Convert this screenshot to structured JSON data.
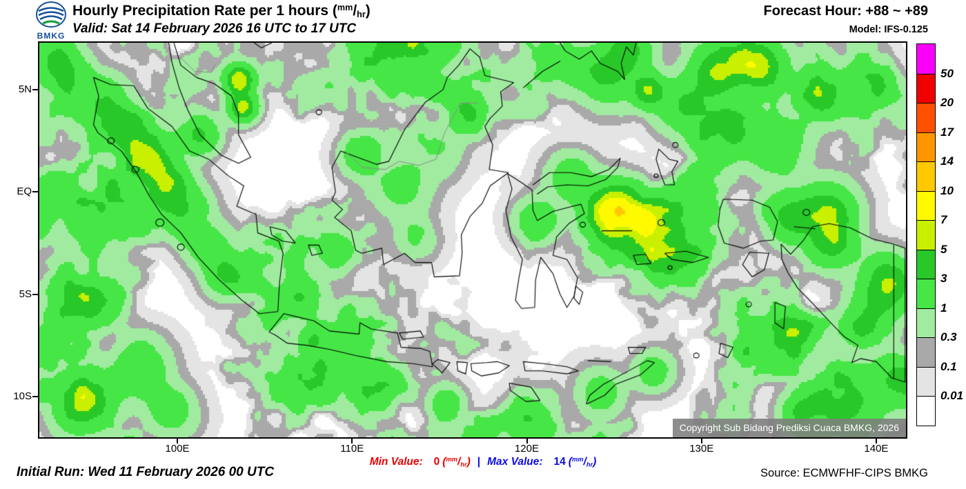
{
  "header": {
    "logo_text": "BMKG",
    "title_prefix": "Hourly Precipitation Rate per 1 hours ",
    "valid_line": "Valid: Sat 14 February 2026 16 UTC to 17 UTC",
    "forecast_hour": "Forecast Hour: +88 ~ +89",
    "model": "Model: IFS-0.125"
  },
  "units": {
    "open": "(",
    "num": "mm",
    "slash": "/",
    "den": "hr",
    "close": ")"
  },
  "map": {
    "extent": {
      "lon_min": 92.1,
      "lon_max": 141.7,
      "lat_min": -12.0,
      "lat_max": 7.3
    },
    "x_ticks": [
      {
        "label": "100E",
        "lon": 100
      },
      {
        "label": "110E",
        "lon": 110
      },
      {
        "label": "120E",
        "lon": 120
      },
      {
        "label": "130E",
        "lon": 130
      },
      {
        "label": "140E",
        "lon": 140
      }
    ],
    "y_ticks": [
      {
        "label": "5N",
        "lat": 5
      },
      {
        "label": "EQ",
        "lat": 0
      },
      {
        "label": "5S",
        "lat": -5
      },
      {
        "label": "10S",
        "lat": -10
      }
    ],
    "copyright": "Copyright Sub Bidang Prediksi Cuaca BMKG, 2026"
  },
  "legend": {
    "labels_top_to_bottom": [
      "50",
      "20",
      "17",
      "14",
      "10",
      "7",
      "5",
      "3",
      "1",
      "0.3",
      "0.1",
      "0.01"
    ],
    "thresholds_ascending": [
      0.01,
      0.1,
      0.3,
      1,
      3,
      5,
      7,
      10,
      14,
      17,
      20,
      50
    ],
    "colors_top_to_bottom": [
      "#fa00fa",
      "#f00000",
      "#ff5000",
      "#ff9600",
      "#ffc800",
      "#fffa00",
      "#c8f000",
      "#28c828",
      "#46e646",
      "#a0eba0",
      "#a9a9a9",
      "#e4e4e4",
      "#ffffff"
    ]
  },
  "footer": {
    "initial_run": "Initial Run: Wed 11 February 2026 00 UTC",
    "min_label": "Min Value:",
    "min_value": "0",
    "separator": "|",
    "max_label": "Max Value:",
    "max_value": "14",
    "source": "Source: ECMWFHF-CIPS BMKG"
  },
  "colors": {
    "min_color": "#e80000",
    "max_color": "#0a0ae6",
    "coastline": "#000000",
    "border_gray": "#8a8a8a"
  }
}
